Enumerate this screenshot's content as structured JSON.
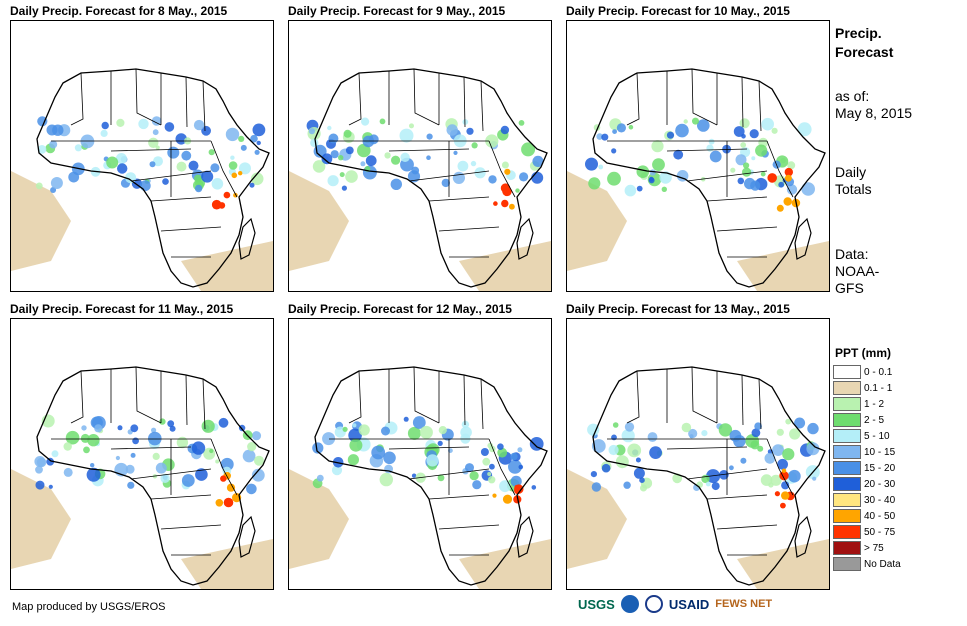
{
  "panels": [
    {
      "title": "Daily Precip. Forecast for 8 May., 2015"
    },
    {
      "title": "Daily Precip. Forecast for 9 May., 2015"
    },
    {
      "title": "Daily Precip. Forecast for 10 May., 2015"
    },
    {
      "title": "Daily Precip. Forecast for 11 May., 2015"
    },
    {
      "title": "Daily Precip. Forecast for 12 May., 2015"
    },
    {
      "title": "Daily Precip. Forecast for 13 May., 2015"
    }
  ],
  "sidebar": {
    "title_line1": "Precip.",
    "title_line2": "Forecast",
    "asof_label": "as of:",
    "asof_date": "May 8, 2015",
    "totals_line1": "Daily",
    "totals_line2": "Totals",
    "data_line1": "Data:",
    "data_line2": "NOAA-",
    "data_line3": "GFS"
  },
  "legend": {
    "title": "PPT (mm)",
    "items": [
      {
        "label": "0 - 0.1",
        "color": "#ffffff"
      },
      {
        "label": "0.1 - 1",
        "color": "#e8d6b3"
      },
      {
        "label": "1 - 2",
        "color": "#b9f2b0"
      },
      {
        "label": "2 - 5",
        "color": "#6fdd6f"
      },
      {
        "label": "5 - 10",
        "color": "#b4eef8"
      },
      {
        "label": "10 - 15",
        "color": "#7fb6f0"
      },
      {
        "label": "15 - 20",
        "color": "#4a90e6"
      },
      {
        "label": "20 - 30",
        "color": "#1f5fd9"
      },
      {
        "label": "30 - 40",
        "color": "#ffe680"
      },
      {
        "label": "40 - 50",
        "color": "#ffa500"
      },
      {
        "label": "50 - 75",
        "color": "#ff3300"
      },
      {
        "label": "> 75",
        "color": "#a01010"
      },
      {
        "label": "No Data",
        "color": "#999999"
      }
    ]
  },
  "footer": {
    "credit": "Map produced by USGS/EROS",
    "logo_usgs": "USGS",
    "logo_usaid": "USAID",
    "logo_fewsnet": "FEWS NET"
  }
}
